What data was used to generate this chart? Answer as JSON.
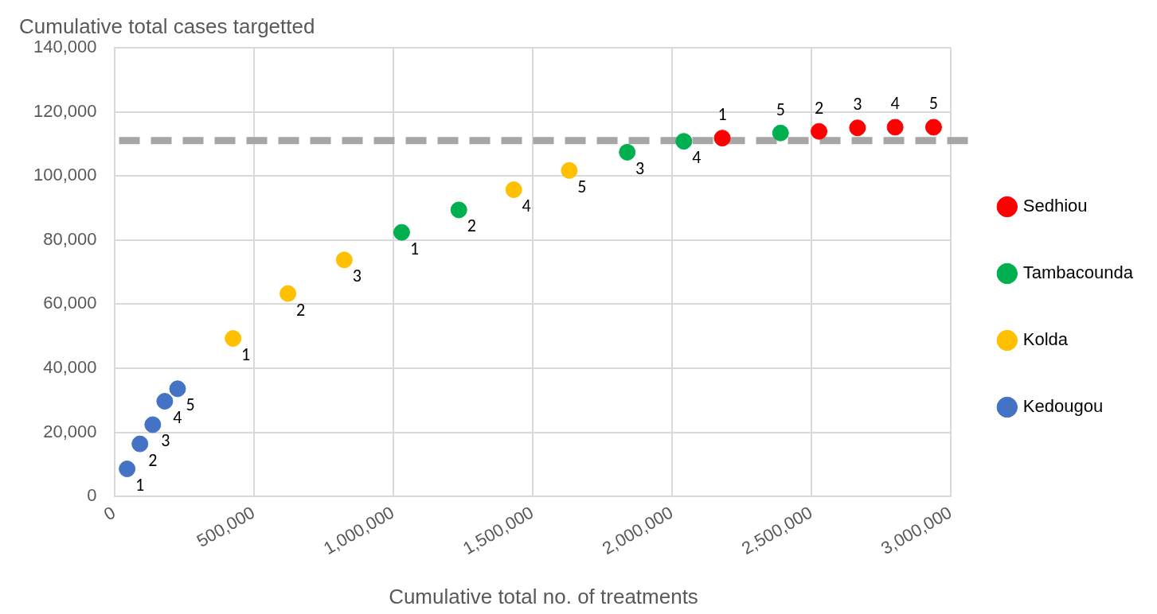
{
  "chart_data": {
    "type": "scatter",
    "ylabel": "Cumulative total cases targetted",
    "xlabel": "Cumulative total no. of treatments",
    "xlim": [
      0,
      3000000
    ],
    "xticks": [
      {
        "value": 0,
        "label": "0"
      },
      {
        "value": 500000,
        "label": "500,000"
      },
      {
        "value": 1000000,
        "label": "1,000,000"
      },
      {
        "value": 1500000,
        "label": "1,500,000"
      },
      {
        "value": 2000000,
        "label": "2,000,000"
      },
      {
        "value": 2500000,
        "label": "2,500,000"
      },
      {
        "value": 3000000,
        "label": "3,000,000"
      }
    ],
    "ylim": [
      0,
      140000
    ],
    "yticks": [
      {
        "value": 0,
        "label": "0"
      },
      {
        "value": 20000,
        "label": "20,000"
      },
      {
        "value": 40000,
        "label": "40,000"
      },
      {
        "value": 60000,
        "label": "60,000"
      },
      {
        "value": 80000,
        "label": "80,000"
      },
      {
        "value": 100000,
        "label": "100,000"
      },
      {
        "value": 120000,
        "label": "120,000"
      },
      {
        "value": 140000,
        "label": "140,000"
      }
    ],
    "grid": true,
    "legend": "right",
    "marker": "circle",
    "ref_lines": [
      {
        "axis": "y",
        "value": 111000,
        "color": "#a6a6a6",
        "line_style": "dashed"
      }
    ],
    "series": [
      {
        "name": "Sedhiou",
        "color": "#ff0000",
        "x": [
          2181000,
          2528000,
          2666000,
          2801000,
          2939000
        ],
        "values": [
          111800,
          113900,
          115000,
          115200,
          115200
        ]
      },
      {
        "name": "Tambacounda",
        "color": "#00b050",
        "x": [
          1031000,
          1236000,
          1840000,
          2043000,
          2390000
        ],
        "values": [
          82400,
          89400,
          107400,
          110800,
          113400
        ]
      },
      {
        "name": "Kolda",
        "color": "#ffc000",
        "x": [
          426000,
          623000,
          825000,
          1433000,
          1632000
        ],
        "values": [
          49300,
          63300,
          73800,
          95700,
          101700
        ]
      },
      {
        "name": "Kedougou",
        "color": "#4472c4",
        "x": [
          46000,
          92000,
          138000,
          181000,
          227000
        ],
        "values": [
          8600,
          16400,
          22400,
          29700,
          33600
        ]
      }
    ],
    "annotations": [
      {
        "text": "1",
        "x": 2181000,
        "y": 111800
      },
      {
        "text": "2",
        "x": 2528000,
        "y": 113900
      },
      {
        "text": "3",
        "x": 2666000,
        "y": 115000
      },
      {
        "text": "4",
        "x": 2801000,
        "y": 115200
      },
      {
        "text": "5",
        "x": 2939000,
        "y": 115200
      },
      {
        "text": "1",
        "x": 1031000,
        "y": 82400
      },
      {
        "text": "2",
        "x": 1236000,
        "y": 89400
      },
      {
        "text": "3",
        "x": 1840000,
        "y": 107400
      },
      {
        "text": "4",
        "x": 2043000,
        "y": 110800
      },
      {
        "text": "5",
        "x": 2390000,
        "y": 113400
      },
      {
        "text": "1",
        "x": 426000,
        "y": 49300
      },
      {
        "text": "2",
        "x": 623000,
        "y": 63300
      },
      {
        "text": "3",
        "x": 825000,
        "y": 73800
      },
      {
        "text": "4",
        "x": 1433000,
        "y": 95700
      },
      {
        "text": "5",
        "x": 1632000,
        "y": 101700
      },
      {
        "text": "1",
        "x": 46000,
        "y": 8600
      },
      {
        "text": "2",
        "x": 92000,
        "y": 16400
      },
      {
        "text": "3",
        "x": 138000,
        "y": 22400
      },
      {
        "text": "4",
        "x": 181000,
        "y": 29700
      },
      {
        "text": "5",
        "x": 227000,
        "y": 33600
      }
    ]
  }
}
